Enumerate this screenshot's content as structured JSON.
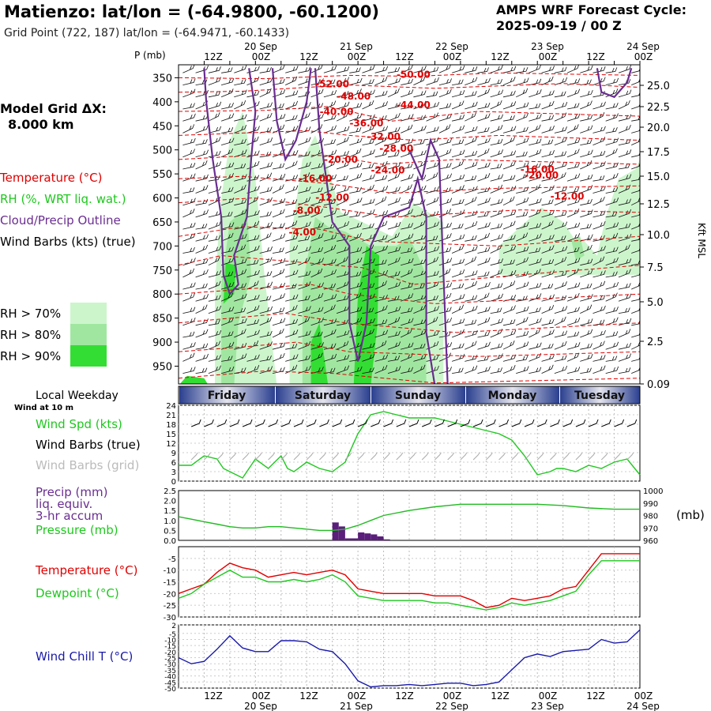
{
  "header": {
    "title": "Matienzo:  lat/lon = (-64.9800, -60.1200)",
    "subtitle": "Grid Point (722, 187) lat/lon = (-64.9471, -60.1433)",
    "cycle_line1": "AMPS WRF Forecast Cycle:",
    "cycle_line2": "2025-09-19 / 00  Z"
  },
  "left_legend": {
    "grid_label": "Model Grid ΔX:",
    "grid_value": "8.000 km",
    "temperature": "Temperature (°C)",
    "rh": "RH (%, WRT liq. wat.)",
    "cloud": "Cloud/Precip Outline",
    "wind": "Wind Barbs (kts) (true)",
    "rh70": "RH > 70%",
    "rh80": "RH > 80%",
    "rh90": "RH > 90%"
  },
  "colors": {
    "temp": "#e00000",
    "rh70": "#ccf5cc",
    "rh80": "#a0e6a0",
    "rh90": "#33dd33",
    "cloud": "#6a2d91",
    "dew": "#1ec81e",
    "windchill": "#1a1aaa",
    "precip": "#5a1f7a",
    "pressure": "#22bb22"
  },
  "time_axis": {
    "ticks": [
      "12Z",
      "00Z",
      "12Z",
      "00Z",
      "12Z",
      "00Z",
      "12Z",
      "00Z",
      "12Z",
      "00Z"
    ],
    "dates": [
      "20 Sep",
      "21 Sep",
      "22 Sep",
      "23 Sep",
      "24 Sep"
    ]
  },
  "days": {
    "title": "Local Weekday",
    "names": [
      "Friday",
      "Saturday",
      "Sunday",
      "Monday",
      "Tuesday"
    ]
  },
  "wind_panel": {
    "title": "Wind at 10 m",
    "spd_label": "Wind Spd (kts)",
    "barb_true": "Wind Barbs (true)",
    "barb_grid": "Wind Barbs (grid)"
  },
  "precip_panel": {
    "l1": "Precip (mm)",
    "l2": "liq. equiv.",
    "l3": "3-hr accum",
    "l4": "Pressure (mb)",
    "right_unit": "(mb)"
  },
  "temp_panel": {
    "t": "Temperature (°C)",
    "d": "Dewpoint (°C)"
  },
  "wc_panel": {
    "label": "Wind Chill T (°C)"
  },
  "chart_data": [
    {
      "type": "heatmap",
      "title": "",
      "ylabel": "P (mb)",
      "ylabel_right": "Kft MSL",
      "pressure_ticks": [
        350,
        400,
        450,
        500,
        550,
        600,
        650,
        700,
        750,
        800,
        850,
        900,
        950
      ],
      "kft_ticks": [
        "25.0",
        "22.5",
        "20.0",
        "17.5",
        "15.0",
        "12.5",
        "10.0",
        "7.5",
        "5.0",
        "2.5",
        "0.09"
      ],
      "temperature_contour_labels": [
        "-50.00",
        "-52.00",
        "-48.00",
        "-44.00",
        "-40.00",
        "-36.00",
        "-32.00",
        "-28.00",
        "-20.00",
        "-24.00",
        "-16.00",
        "-16.00",
        "-20.00",
        "-12.00",
        "-12.00",
        "-8.00",
        "-4.00"
      ]
    },
    {
      "type": "line",
      "title": "",
      "ylim": [
        0,
        24
      ],
      "y_ticks": [
        0,
        3,
        6,
        9,
        12,
        15,
        18,
        21,
        24
      ],
      "x_hours": [
        0,
        6,
        12,
        18,
        21,
        24,
        30,
        36,
        42,
        48,
        51,
        54,
        60,
        66,
        72,
        78,
        84,
        90,
        96,
        102,
        108,
        114,
        120,
        126,
        132,
        138,
        144,
        150,
        156,
        162,
        168,
        174,
        177,
        180,
        186,
        192,
        198,
        204,
        210,
        216
      ],
      "series": [
        {
          "name": "Wind Spd (kts)",
          "values": [
            5,
            5,
            8,
            7,
            4,
            3,
            1,
            7,
            4,
            8,
            4,
            3,
            6,
            4,
            3,
            6,
            15,
            21,
            22,
            21,
            20,
            20,
            20,
            19,
            18,
            17,
            16,
            15,
            13,
            8,
            2,
            3,
            4,
            4,
            3,
            5,
            4,
            6,
            7,
            2
          ]
        }
      ]
    },
    {
      "type": "bar",
      "title": "",
      "ylim": [
        0,
        2.5
      ],
      "y_ticks": [
        "0.0",
        "0.5",
        "1.0",
        "1.5",
        "2.0",
        "2.5"
      ],
      "right_ticks": [
        960,
        970,
        980,
        990,
        1000
      ],
      "bars": [
        {
          "start_hour": 72,
          "end_hour": 75,
          "value": 0.9
        },
        {
          "start_hour": 75,
          "end_hour": 78,
          "value": 0.7
        },
        {
          "start_hour": 78,
          "end_hour": 81,
          "value": 0.1
        },
        {
          "start_hour": 81,
          "end_hour": 84,
          "value": 0.1
        },
        {
          "start_hour": 84,
          "end_hour": 87,
          "value": 0.4
        },
        {
          "start_hour": 87,
          "end_hour": 90,
          "value": 0.35
        },
        {
          "start_hour": 90,
          "end_hour": 93,
          "value": 0.3
        },
        {
          "start_hour": 93,
          "end_hour": 96,
          "value": 0.2
        },
        {
          "start_hour": 96,
          "end_hour": 99,
          "value": 0.05
        }
      ],
      "pressure": {
        "name": "Pressure (mb)",
        "x_hours": [
          0,
          6,
          12,
          18,
          24,
          30,
          36,
          42,
          48,
          54,
          60,
          66,
          72,
          78,
          84,
          90,
          96,
          108,
          120,
          132,
          144,
          156,
          168,
          180,
          192,
          204,
          216
        ],
        "values": [
          979,
          977,
          975,
          973,
          971,
          970,
          970,
          971,
          971,
          970,
          969,
          968,
          968,
          969,
          972,
          976,
          980,
          984,
          987,
          989,
          989,
          989,
          989,
          988,
          986,
          985,
          985
        ]
      }
    },
    {
      "type": "line",
      "title": "",
      "ylim": [
        -30,
        0
      ],
      "y_ticks": [
        -5,
        -10,
        -15,
        -20,
        -25,
        -30
      ],
      "x_hours": [
        0,
        6,
        12,
        18,
        24,
        30,
        36,
        42,
        48,
        54,
        60,
        66,
        72,
        78,
        84,
        90,
        96,
        102,
        108,
        114,
        120,
        126,
        132,
        138,
        144,
        150,
        156,
        162,
        168,
        174,
        180,
        186,
        192,
        198,
        204,
        210,
        216
      ],
      "series": [
        {
          "name": "Temperature (°C)",
          "values": [
            -20,
            -18,
            -16,
            -11,
            -7,
            -9,
            -10,
            -13,
            -12,
            -11,
            -12,
            -11,
            -10,
            -12,
            -18,
            -19,
            -20,
            -20,
            -20,
            -20,
            -21,
            -21,
            -21,
            -23,
            -26,
            -25,
            -22,
            -23,
            -22,
            -21,
            -18,
            -17,
            -10,
            -3,
            -3,
            -3,
            -3
          ]
        },
        {
          "name": "Dewpoint (°C)",
          "values": [
            -22,
            -20,
            -16,
            -13,
            -10,
            -13,
            -13,
            -15,
            -15,
            -14,
            -15,
            -14,
            -12,
            -15,
            -21,
            -22,
            -23,
            -23,
            -23,
            -23,
            -24,
            -24,
            -25,
            -26,
            -27,
            -26,
            -24,
            -25,
            -24,
            -23,
            -21,
            -19,
            -12,
            -6,
            -6,
            -6,
            -6
          ]
        }
      ]
    },
    {
      "type": "line",
      "title": "",
      "ylim": [
        -50,
        2
      ],
      "y_ticks": [
        2,
        -5,
        -10,
        -15,
        -20,
        -25,
        -30,
        -35,
        -40,
        -45,
        -50
      ],
      "x_hours": [
        0,
        6,
        12,
        18,
        24,
        30,
        36,
        42,
        48,
        54,
        60,
        66,
        72,
        78,
        84,
        90,
        96,
        102,
        108,
        114,
        120,
        126,
        132,
        138,
        144,
        150,
        156,
        162,
        168,
        174,
        180,
        186,
        192,
        198,
        204,
        210,
        216
      ],
      "series": [
        {
          "name": "Wind Chill T (°C)",
          "values": [
            -25,
            -30,
            -28,
            -18,
            -7,
            -17,
            -20,
            -20,
            -11,
            -11,
            -12,
            -18,
            -20,
            -30,
            -44,
            -49,
            -48,
            -48,
            -47,
            -48,
            -47,
            -46,
            -46,
            -48,
            -47,
            -45,
            -35,
            -25,
            -22,
            -24,
            -20,
            -19,
            -18,
            -10,
            -13,
            -12,
            -2
          ]
        }
      ]
    }
  ]
}
